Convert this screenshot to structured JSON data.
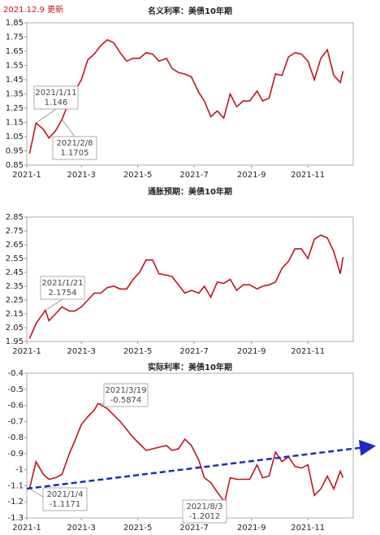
{
  "note": "2021.12.9 更新",
  "chart_data": [
    {
      "type": "line",
      "title": "名义利率：美债10年期",
      "color": "#c0141c",
      "x": [
        "2021-01-04",
        "2021-01-11",
        "2021-01-19",
        "2021-01-25",
        "2021-02-01",
        "2021-02-08",
        "2021-02-16",
        "2021-02-22",
        "2021-03-01",
        "2021-03-08",
        "2021-03-15",
        "2021-03-22",
        "2021-03-29",
        "2021-04-05",
        "2021-04-12",
        "2021-04-19",
        "2021-04-26",
        "2021-05-03",
        "2021-05-10",
        "2021-05-17",
        "2021-05-24",
        "2021-06-01",
        "2021-06-07",
        "2021-06-14",
        "2021-06-21",
        "2021-06-28",
        "2021-07-06",
        "2021-07-12",
        "2021-07-19",
        "2021-07-26",
        "2021-08-02",
        "2021-08-09",
        "2021-08-16",
        "2021-08-23",
        "2021-08-30",
        "2021-09-07",
        "2021-09-13",
        "2021-09-20",
        "2021-09-27",
        "2021-10-04",
        "2021-10-11",
        "2021-10-18",
        "2021-10-25",
        "2021-11-01",
        "2021-11-08",
        "2021-11-15",
        "2021-11-22",
        "2021-11-29",
        "2021-12-06",
        "2021-12-09"
      ],
      "values": [
        0.93,
        1.146,
        1.1,
        1.04,
        1.09,
        1.1705,
        1.3,
        1.37,
        1.45,
        1.59,
        1.63,
        1.69,
        1.73,
        1.71,
        1.64,
        1.58,
        1.6,
        1.6,
        1.64,
        1.63,
        1.58,
        1.6,
        1.53,
        1.5,
        1.49,
        1.47,
        1.36,
        1.3,
        1.19,
        1.23,
        1.18,
        1.35,
        1.26,
        1.3,
        1.3,
        1.37,
        1.3,
        1.32,
        1.49,
        1.48,
        1.61,
        1.64,
        1.63,
        1.58,
        1.45,
        1.6,
        1.66,
        1.48,
        1.43,
        1.51
      ],
      "xlim": [
        "2021-01-01",
        "2021-12-20"
      ],
      "xticks": [
        {
          "value": "2021-01-01",
          "label": "2021-1"
        },
        {
          "value": "2021-03-01",
          "label": "2021-3"
        },
        {
          "value": "2021-05-01",
          "label": "2021-5"
        },
        {
          "value": "2021-07-01",
          "label": "2021-7"
        },
        {
          "value": "2021-09-01",
          "label": "2021-9"
        },
        {
          "value": "2021-11-01",
          "label": "2021-11"
        }
      ],
      "ylim": [
        0.85,
        1.85
      ],
      "yticks": [
        0.85,
        0.95,
        1.05,
        1.15,
        1.25,
        1.35,
        1.45,
        1.55,
        1.65,
        1.75,
        1.85
      ],
      "annotations": [
        {
          "lines": [
            "2021/1/11",
            "1.146"
          ]
        },
        {
          "lines": [
            "2021/2/8",
            "1.1705"
          ]
        }
      ]
    },
    {
      "type": "line",
      "title": "通胀预期：美债10年期",
      "color": "#c0141c",
      "x": [
        "2021-01-04",
        "2021-01-11",
        "2021-01-21",
        "2021-01-25",
        "2021-02-01",
        "2021-02-08",
        "2021-02-16",
        "2021-02-22",
        "2021-03-01",
        "2021-03-08",
        "2021-03-15",
        "2021-03-22",
        "2021-03-29",
        "2021-04-05",
        "2021-04-12",
        "2021-04-19",
        "2021-04-26",
        "2021-05-03",
        "2021-05-10",
        "2021-05-17",
        "2021-05-24",
        "2021-06-01",
        "2021-06-07",
        "2021-06-14",
        "2021-06-21",
        "2021-06-28",
        "2021-07-06",
        "2021-07-12",
        "2021-07-19",
        "2021-07-26",
        "2021-08-02",
        "2021-08-09",
        "2021-08-16",
        "2021-08-23",
        "2021-08-30",
        "2021-09-07",
        "2021-09-13",
        "2021-09-20",
        "2021-09-27",
        "2021-10-04",
        "2021-10-11",
        "2021-10-18",
        "2021-10-25",
        "2021-11-01",
        "2021-11-08",
        "2021-11-15",
        "2021-11-22",
        "2021-11-29",
        "2021-12-06",
        "2021-12-09"
      ],
      "values": [
        1.97,
        2.08,
        2.1754,
        2.1,
        2.15,
        2.2,
        2.17,
        2.17,
        2.2,
        2.25,
        2.3,
        2.3,
        2.34,
        2.35,
        2.33,
        2.33,
        2.4,
        2.45,
        2.54,
        2.54,
        2.44,
        2.43,
        2.42,
        2.36,
        2.3,
        2.32,
        2.3,
        2.35,
        2.27,
        2.38,
        2.37,
        2.4,
        2.32,
        2.36,
        2.36,
        2.33,
        2.35,
        2.36,
        2.38,
        2.48,
        2.53,
        2.62,
        2.62,
        2.55,
        2.69,
        2.72,
        2.7,
        2.6,
        2.44,
        2.56
      ],
      "xlim": [
        "2021-01-01",
        "2021-12-20"
      ],
      "xticks": [
        {
          "value": "2021-01-01",
          "label": "2021-1"
        },
        {
          "value": "2021-03-01",
          "label": "2021-3"
        },
        {
          "value": "2021-05-01",
          "label": "2021-5"
        },
        {
          "value": "2021-07-01",
          "label": "2021-7"
        },
        {
          "value": "2021-09-01",
          "label": "2021-9"
        },
        {
          "value": "2021-11-01",
          "label": "2021-11"
        }
      ],
      "ylim": [
        1.95,
        2.85
      ],
      "yticks": [
        1.95,
        2.05,
        2.15,
        2.25,
        2.35,
        2.45,
        2.55,
        2.65,
        2.75,
        2.85
      ],
      "annotations": [
        {
          "lines": [
            "2021/1/21",
            "2.1754"
          ]
        }
      ]
    },
    {
      "type": "line",
      "title": "实际利率：美债10年期",
      "color": "#c0141c",
      "x": [
        "2021-01-04",
        "2021-01-11",
        "2021-01-19",
        "2021-01-25",
        "2021-02-01",
        "2021-02-08",
        "2021-02-16",
        "2021-02-22",
        "2021-03-01",
        "2021-03-08",
        "2021-03-15",
        "2021-03-19",
        "2021-03-29",
        "2021-04-05",
        "2021-04-12",
        "2021-04-19",
        "2021-04-26",
        "2021-05-03",
        "2021-05-10",
        "2021-05-17",
        "2021-05-24",
        "2021-06-01",
        "2021-06-07",
        "2021-06-14",
        "2021-06-21",
        "2021-06-28",
        "2021-07-06",
        "2021-07-12",
        "2021-07-19",
        "2021-07-26",
        "2021-08-03",
        "2021-08-09",
        "2021-08-16",
        "2021-08-23",
        "2021-08-30",
        "2021-09-07",
        "2021-09-13",
        "2021-09-20",
        "2021-09-27",
        "2021-10-04",
        "2021-10-11",
        "2021-10-18",
        "2021-10-25",
        "2021-11-01",
        "2021-11-08",
        "2021-11-15",
        "2021-11-22",
        "2021-11-29",
        "2021-12-06",
        "2021-12-09"
      ],
      "values": [
        -1.1171,
        -0.95,
        -1.03,
        -1.06,
        -1.05,
        -1.03,
        -0.9,
        -0.82,
        -0.72,
        -0.67,
        -0.63,
        -0.5874,
        -0.62,
        -0.66,
        -0.7,
        -0.75,
        -0.8,
        -0.84,
        -0.88,
        -0.87,
        -0.86,
        -0.85,
        -0.88,
        -0.87,
        -0.81,
        -0.85,
        -0.94,
        -1.05,
        -1.08,
        -1.14,
        -1.2012,
        -1.05,
        -1.06,
        -1.06,
        -1.06,
        -0.97,
        -1.05,
        -1.04,
        -0.89,
        -0.95,
        -0.92,
        -0.98,
        -0.99,
        -0.97,
        -1.16,
        -1.12,
        -1.04,
        -1.12,
        -1.01,
        -1.05
      ],
      "xlim": [
        "2021-01-01",
        "2021-12-20"
      ],
      "xticks": [
        {
          "value": "2021-01-01",
          "label": "2021-1"
        },
        {
          "value": "2021-03-01",
          "label": "2021-3"
        },
        {
          "value": "2021-05-01",
          "label": "2021-5"
        },
        {
          "value": "2021-07-01",
          "label": "2021-7"
        },
        {
          "value": "2021-09-01",
          "label": "2021-9"
        },
        {
          "value": "2021-11-01",
          "label": "2021-11"
        }
      ],
      "ylim": [
        -1.3,
        -0.4
      ],
      "yticks": [
        -0.4,
        -0.5,
        -0.6,
        -0.7,
        -0.8,
        -0.9,
        -1,
        -1.1,
        -1.2,
        -1.3
      ],
      "annotations": [
        {
          "lines": [
            "2021/3/19",
            "-0.5874"
          ]
        },
        {
          "lines": [
            "2021/1/4",
            "-1.1171"
          ]
        },
        {
          "lines": [
            "2021/8/3",
            "-1.2012"
          ]
        }
      ]
    }
  ]
}
